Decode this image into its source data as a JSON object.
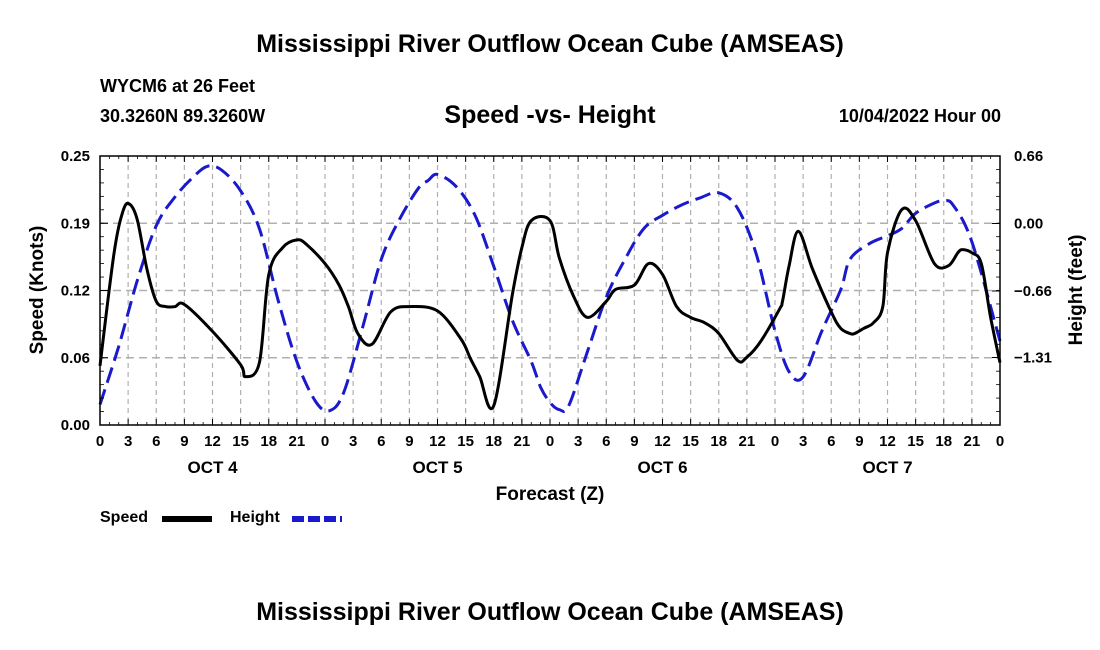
{
  "header": {
    "title": "Mississippi River Outflow Ocean Cube (AMSEAS)",
    "station": "WYCM6 at 26 Feet",
    "location": "30.3260N  89.3260W",
    "subtitle": "Speed -vs- Height",
    "datetime": "10/04/2022 Hour 00"
  },
  "footer": {
    "title": "Mississippi River Outflow Ocean Cube (AMSEAS)"
  },
  "legend": {
    "speed_label": "Speed",
    "height_label": "Height"
  },
  "colors": {
    "speed": "#000000",
    "height": "#1a1acc",
    "grid": "#b0b0b0"
  },
  "chart_data": {
    "type": "line",
    "xlabel": "Forecast (Z)",
    "ylabel_left": "Speed (Knots)",
    "ylabel_right": "Height (feet)",
    "xlim": [
      0,
      96
    ],
    "ylim_left": [
      0.0,
      0.25
    ],
    "ylim_right": [
      -1.97,
      0.66
    ],
    "left_ticks": [
      {
        "v": 0.0,
        "label": "0.00"
      },
      {
        "v": 0.0625,
        "label": "0.06"
      },
      {
        "v": 0.125,
        "label": "0.12"
      },
      {
        "v": 0.1875,
        "label": "0.19"
      },
      {
        "v": 0.25,
        "label": "0.25"
      }
    ],
    "right_ticks": [
      {
        "v": 0.66,
        "label": "0.66"
      },
      {
        "v": 0.0,
        "label": "0.00"
      },
      {
        "v": -0.66,
        "label": "−0.66"
      },
      {
        "v": -1.31,
        "label": "−1.31"
      }
    ],
    "x_ticks": [
      "0",
      "3",
      "6",
      "9",
      "12",
      "15",
      "18",
      "21",
      "0",
      "3",
      "6",
      "9",
      "12",
      "15",
      "18",
      "21",
      "0",
      "3",
      "6",
      "9",
      "12",
      "15",
      "18",
      "21",
      "0",
      "3",
      "6",
      "9",
      "12",
      "15",
      "18",
      "21",
      "0"
    ],
    "day_labels": [
      {
        "hour": 12,
        "label": "OCT 4"
      },
      {
        "hour": 36,
        "label": "OCT 5"
      },
      {
        "hour": 60,
        "label": "OCT 6"
      },
      {
        "hour": 84,
        "label": "OCT 7"
      }
    ],
    "grid": true,
    "series": [
      {
        "name": "Speed",
        "axis": "left",
        "style": "solid",
        "x": [
          0,
          1.5,
          2.5,
          3.2,
          4,
          5,
          6,
          7,
          8,
          9,
          12,
          15,
          15.5,
          17,
          18,
          19.5,
          21,
          22,
          24,
          25.5,
          26.5,
          27.5,
          29,
          31,
          33,
          36,
          38.5,
          39.5,
          40.5,
          42,
          44,
          45,
          46,
          48,
          49,
          50.5,
          52,
          54,
          55,
          57,
          58.5,
          60,
          61.5,
          63,
          64.5,
          66,
          68,
          69,
          70.5,
          72.5,
          72.8,
          73.5,
          74.5,
          76,
          78,
          79,
          80,
          80.5,
          81.5,
          82.5,
          83.5,
          84,
          85.5,
          87,
          89,
          90.5,
          91.5,
          92,
          93,
          94,
          95,
          96
        ],
        "values": [
          0.055,
          0.16,
          0.2,
          0.205,
          0.19,
          0.145,
          0.115,
          0.11,
          0.11,
          0.112,
          0.087,
          0.056,
          0.045,
          0.058,
          0.14,
          0.165,
          0.172,
          0.168,
          0.15,
          0.13,
          0.11,
          0.085,
          0.075,
          0.105,
          0.11,
          0.106,
          0.08,
          0.062,
          0.045,
          0.018,
          0.122,
          0.165,
          0.19,
          0.19,
          0.155,
          0.12,
          0.1,
          0.115,
          0.126,
          0.13,
          0.15,
          0.14,
          0.11,
          0.1,
          0.095,
          0.085,
          0.06,
          0.063,
          0.078,
          0.108,
          0.115,
          0.148,
          0.18,
          0.145,
          0.105,
          0.09,
          0.085,
          0.085,
          0.09,
          0.095,
          0.11,
          0.16,
          0.2,
          0.19,
          0.15,
          0.148,
          0.16,
          0.163,
          0.16,
          0.15,
          0.1,
          0.058
        ]
      },
      {
        "name": "Height",
        "axis": "right",
        "style": "dashed",
        "x": [
          0,
          2,
          4,
          6,
          8,
          10,
          11.5,
          13,
          15,
          17,
          19,
          21,
          23,
          24.5,
          26,
          28,
          30,
          32,
          34,
          35,
          36,
          38,
          40,
          42,
          44,
          46,
          47,
          48,
          49,
          50,
          52,
          54,
          56,
          58,
          60,
          62,
          64,
          66,
          68,
          70,
          72,
          73.5,
          75,
          77,
          79,
          80,
          82,
          84,
          85.5,
          87,
          89,
          90,
          91,
          93,
          96
        ],
        "values": [
          -1.77,
          -1.2,
          -0.55,
          -0.02,
          0.26,
          0.46,
          0.56,
          0.52,
          0.32,
          -0.05,
          -0.75,
          -1.35,
          -1.74,
          -1.83,
          -1.65,
          -1.02,
          -0.35,
          0.05,
          0.35,
          0.42,
          0.48,
          0.36,
          0.08,
          -0.42,
          -0.95,
          -1.35,
          -1.6,
          -1.75,
          -1.82,
          -1.78,
          -1.25,
          -0.72,
          -0.35,
          -0.05,
          0.08,
          0.18,
          0.25,
          0.3,
          0.15,
          -0.3,
          -1.05,
          -1.45,
          -1.5,
          -1.05,
          -0.65,
          -0.35,
          -0.2,
          -0.12,
          -0.05,
          0.1,
          0.2,
          0.22,
          0.18,
          -0.18,
          -1.15
        ]
      }
    ]
  }
}
